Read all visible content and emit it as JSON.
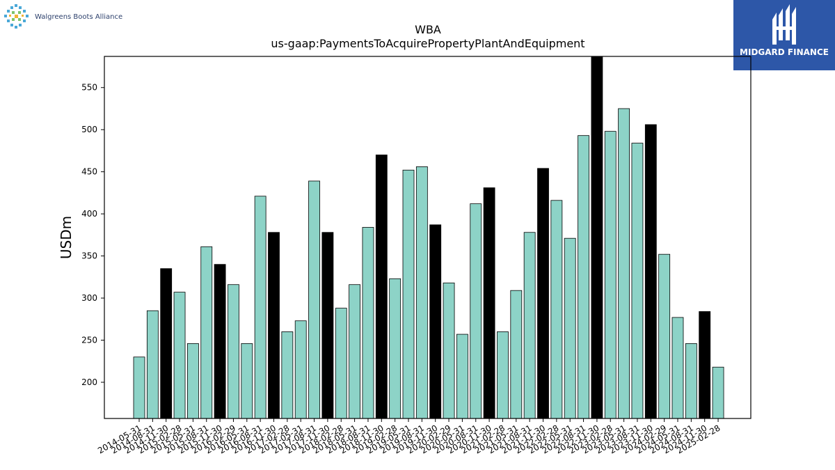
{
  "logos": {
    "company_name": "Walgreens Boots Alliance",
    "publisher_name": "MIDGARD FINANCE",
    "colors": {
      "wba_blue": "#2b3f6b",
      "midgard_blue": "#2d57a8"
    }
  },
  "colors": {
    "bar_default": "#8dd3c7",
    "bar_highlight": "#000000",
    "edge": "#000000"
  },
  "chart_data": {
    "type": "bar",
    "title": "WBA",
    "subtitle": "us-gaap:PaymentsToAcquirePropertyPlantAndEquipment",
    "xlabel": "",
    "ylabel": "USDm",
    "ylim": [
      157,
      587
    ],
    "yticks": [
      200,
      250,
      300,
      350,
      400,
      450,
      500,
      550
    ],
    "grid": false,
    "categories": [
      "2014-05-31",
      "2014-08-31",
      "2014-11-30",
      "2015-02-28",
      "2015-05-31",
      "2015-08-31",
      "2015-11-30",
      "2016-02-29",
      "2016-05-31",
      "2016-08-31",
      "2016-11-30",
      "2017-02-28",
      "2017-05-31",
      "2017-08-31",
      "2017-11-30",
      "2018-02-28",
      "2018-05-31",
      "2018-08-31",
      "2018-11-30",
      "2019-02-28",
      "2019-05-31",
      "2019-08-31",
      "2019-11-30",
      "2020-02-29",
      "2020-05-31",
      "2020-08-31",
      "2020-11-30",
      "2021-02-28",
      "2021-05-31",
      "2021-08-31",
      "2021-11-30",
      "2022-02-28",
      "2022-05-31",
      "2022-08-31",
      "2022-11-30",
      "2023-02-28",
      "2023-05-31",
      "2023-08-31",
      "2023-11-30",
      "2024-02-29",
      "2024-05-31",
      "2024-08-31",
      "2024-11-30",
      "2025-02-28"
    ],
    "values": [
      230,
      285,
      335,
      307,
      246,
      361,
      340,
      316,
      246,
      421,
      378,
      260,
      273,
      439,
      378,
      288,
      316,
      384,
      470,
      323,
      452,
      456,
      387,
      318,
      257,
      412,
      431,
      260,
      309,
      378,
      454,
      416,
      371,
      493,
      587,
      498,
      525,
      484,
      506,
      352,
      277,
      246,
      284,
      218
    ],
    "highlight": [
      false,
      false,
      true,
      false,
      false,
      false,
      true,
      false,
      false,
      false,
      true,
      false,
      false,
      false,
      true,
      false,
      false,
      false,
      true,
      false,
      false,
      false,
      true,
      false,
      false,
      false,
      true,
      false,
      false,
      false,
      true,
      false,
      false,
      false,
      true,
      false,
      false,
      false,
      true,
      false,
      false,
      false,
      true,
      false
    ]
  }
}
